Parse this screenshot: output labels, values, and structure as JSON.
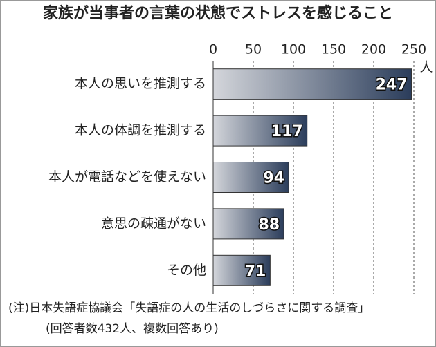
{
  "chart_data": {
    "type": "bar",
    "title": "家族が当事者の言葉の状態でストレスを感じること",
    "xlabel": "人",
    "categories": [
      "本人の思いを推測する",
      "本人の体調を推測する",
      "本人が電話などを使えない",
      "意思の疎通がない",
      "その他"
    ],
    "values": [
      247,
      117,
      94,
      88,
      71
    ],
    "color": "#2b3d5b",
    "xlim": [
      0,
      250
    ],
    "xticks": [
      0,
      50,
      100,
      150,
      200,
      250
    ],
    "grid": true,
    "notes": [
      "(注)日本失語症協議会「失語症の人の生活のしづらさに関する調査」",
      "(回答者数432人、複数回答あり)"
    ]
  }
}
